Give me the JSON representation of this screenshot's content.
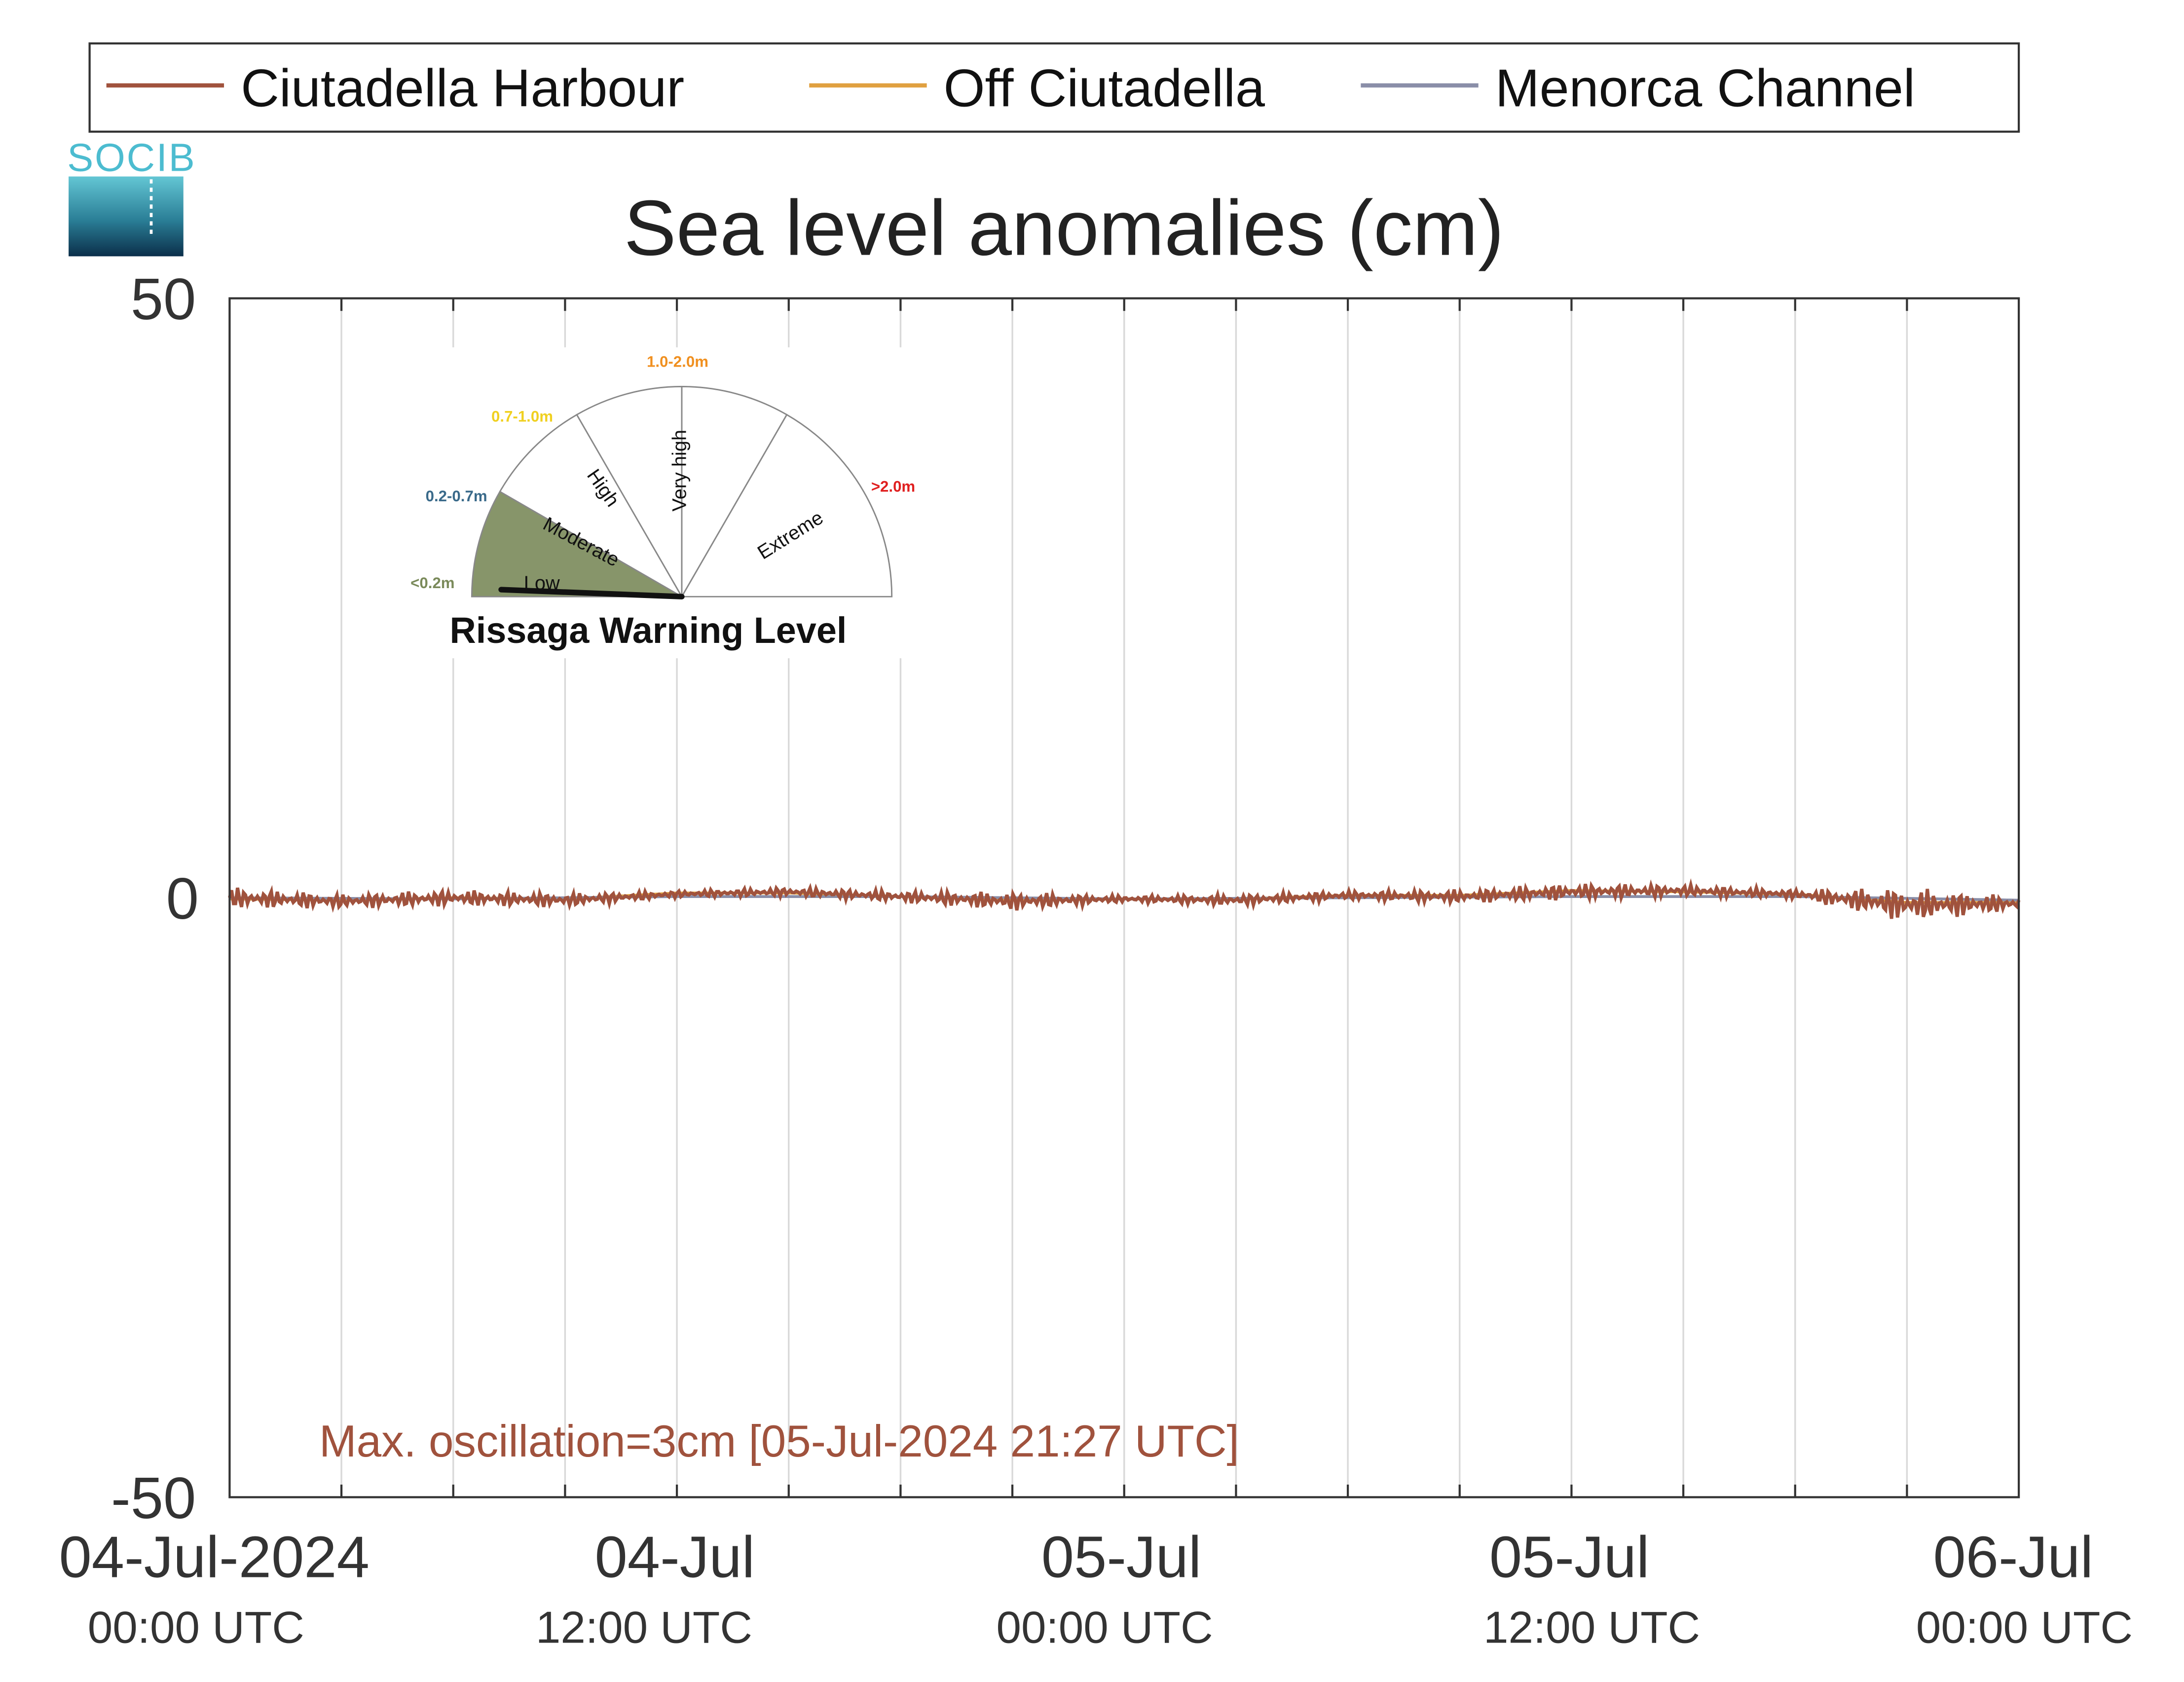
{
  "chart_data": {
    "type": "line",
    "title": "Sea level anomalies (cm)",
    "ylim": [
      -50,
      50
    ],
    "y_ticks": [
      "50",
      "0",
      "-50"
    ],
    "xlim": [
      "2024-07-04 00:00",
      "2024-07-06 00:00"
    ],
    "x_ticks": [
      {
        "date": "2024-07-04 00:00",
        "label": "04-Jul-2024",
        "sublabel": "00:00 UTC"
      },
      {
        "date": "2024-07-04 12:00",
        "label": "04-Jul",
        "sublabel": "12:00 UTC"
      },
      {
        "date": "2024-07-05 00:00",
        "label": "05-Jul",
        "sublabel": "00:00 UTC"
      },
      {
        "date": "2024-07-05 12:00",
        "label": "05-Jul",
        "sublabel": "12:00 UTC"
      },
      {
        "date": "2024-07-06 00:00",
        "label": "06-Jul",
        "sublabel": "00:00 UTC"
      }
    ],
    "grid": "vertical, every 3 hours",
    "legend_position": "top",
    "series": [
      {
        "name": "Ciutadella Harbour",
        "color": "#a0523d",
        "x": [
          "2024-07-04 00:00",
          "2024-07-04 03:00",
          "2024-07-04 06:00",
          "2024-07-04 09:00",
          "2024-07-04 12:00",
          "2024-07-04 15:00",
          "2024-07-04 18:00",
          "2024-07-04 21:00",
          "2024-07-05 00:00",
          "2024-07-05 03:00",
          "2024-07-05 06:00",
          "2024-07-05 09:00",
          "2024-07-05 12:00",
          "2024-07-05 15:00",
          "2024-07-05 18:00",
          "2024-07-05 21:00",
          "2024-07-06 00:00"
        ],
        "y": [
          0,
          -0.3,
          0,
          -0.2,
          0.3,
          0.5,
          0.1,
          -0.3,
          -0.1,
          -0.2,
          0.2,
          0.1,
          0.5,
          0.6,
          0.3,
          -0.6,
          -0.5
        ],
        "oscillation_amplitude_cm": [
          0.9,
          0.6,
          0.7,
          0.6,
          0.3,
          0.4,
          0.5,
          0.8,
          0.3,
          0.5,
          0.4,
          0.6,
          0.7,
          0.5,
          0.4,
          1.5,
          0.6
        ]
      },
      {
        "name": "Off Ciutadella",
        "color": "#e0a040",
        "x": [
          "2024-07-04 00:00",
          "2024-07-04 03:00",
          "2024-07-04 06:00",
          "2024-07-04 09:00",
          "2024-07-04 12:00",
          "2024-07-04 15:00",
          "2024-07-04 18:00",
          "2024-07-04 21:00",
          "2024-07-05 00:00",
          "2024-07-05 03:00",
          "2024-07-05 06:00",
          "2024-07-05 09:00",
          "2024-07-05 12:00",
          "2024-07-05 15:00",
          "2024-07-05 18:00",
          "2024-07-05 21:00",
          "2024-07-06 00:00"
        ],
        "y": [
          -0.1,
          -0.2,
          0,
          -0.1,
          0.4,
          0.4,
          0.1,
          -0.2,
          -0.1,
          -0.1,
          0.2,
          0.2,
          0.6,
          0.5,
          0.3,
          -0.4,
          -0.4
        ]
      },
      {
        "name": "Menorca Channel",
        "color": "#8a8ea8",
        "x": [
          "2024-07-04 00:00",
          "2024-07-04 06:00",
          "2024-07-04 12:00",
          "2024-07-04 18:00",
          "2024-07-05 00:00",
          "2024-07-05 06:00",
          "2024-07-05 12:00",
          "2024-07-05 18:00",
          "2024-07-06 00:00"
        ],
        "y": [
          0,
          -0.1,
          0.1,
          0.1,
          -0.1,
          0,
          0.1,
          0.1,
          -0.2
        ]
      }
    ],
    "annotation": "Max. oscillation=3cm [05-Jul-2024 21:27 UTC]",
    "annotation_color": "#a0523d"
  },
  "logo": {
    "text": "SOCIB",
    "color": "#4cbcd0"
  },
  "rissaga_gauge": {
    "title": "Rissaga Warning Level",
    "current_level": "Low",
    "levels": [
      {
        "label": "Low",
        "range": "<0.2m",
        "color": "#7a8a5a",
        "active": true
      },
      {
        "label": "Moderate",
        "range": "0.2-0.7m",
        "color": "#3a6a8a",
        "active": false
      },
      {
        "label": "High",
        "range": "0.7-1.0m",
        "color": "#f0d020",
        "active": false
      },
      {
        "label": "Very high",
        "range": "1.0-2.0m",
        "color": "#f09020",
        "active": false
      },
      {
        "label": "Extreme",
        "range": ">2.0m",
        "color": "#e02020",
        "active": false
      }
    ]
  }
}
